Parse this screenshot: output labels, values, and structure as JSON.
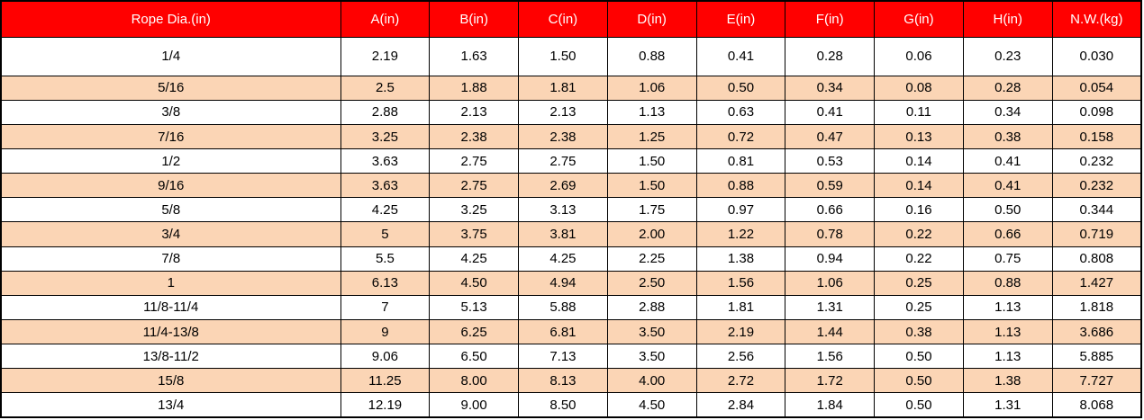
{
  "colors": {
    "header_bg": "#FF0000",
    "header_text": "#FFFFFF",
    "row_bg": "#FFFFFF",
    "row_alt_bg": "#FBD5B5",
    "border": "#000000"
  },
  "chart_data": {
    "type": "table",
    "columns": [
      "Rope Dia.(in)",
      "A(in)",
      "B(in)",
      "C(in)",
      "D(in)",
      "E(in)",
      "F(in)",
      "G(in)",
      "H(in)",
      "N.W.(kg)"
    ],
    "rows": [
      [
        "1/4",
        "2.19",
        "1.63",
        "1.50",
        "0.88",
        "0.41",
        "0.28",
        "0.06",
        "0.23",
        "0.030"
      ],
      [
        "5/16",
        "2.5",
        "1.88",
        "1.81",
        "1.06",
        "0.50",
        "0.34",
        "0.08",
        "0.28",
        "0.054"
      ],
      [
        "3/8",
        "2.88",
        "2.13",
        "2.13",
        "1.13",
        "0.63",
        "0.41",
        "0.11",
        "0.34",
        "0.098"
      ],
      [
        "7/16",
        "3.25",
        "2.38",
        "2.38",
        "1.25",
        "0.72",
        "0.47",
        "0.13",
        "0.38",
        "0.158"
      ],
      [
        "1/2",
        "3.63",
        "2.75",
        "2.75",
        "1.50",
        "0.81",
        "0.53",
        "0.14",
        "0.41",
        "0.232"
      ],
      [
        "9/16",
        "3.63",
        "2.75",
        "2.69",
        "1.50",
        "0.88",
        "0.59",
        "0.14",
        "0.41",
        "0.232"
      ],
      [
        "5/8",
        "4.25",
        "3.25",
        "3.13",
        "1.75",
        "0.97",
        "0.66",
        "0.16",
        "0.50",
        "0.344"
      ],
      [
        "3/4",
        "5",
        "3.75",
        "3.81",
        "2.00",
        "1.22",
        "0.78",
        "0.22",
        "0.66",
        "0.719"
      ],
      [
        "7/8",
        "5.5",
        "4.25",
        "4.25",
        "2.25",
        "1.38",
        "0.94",
        "0.22",
        "0.75",
        "0.808"
      ],
      [
        "1",
        "6.13",
        "4.50",
        "4.94",
        "2.50",
        "1.56",
        "1.06",
        "0.25",
        "0.88",
        "1.427"
      ],
      [
        "11/8-11/4",
        "7",
        "5.13",
        "5.88",
        "2.88",
        "1.81",
        "1.31",
        "0.25",
        "1.13",
        "1.818"
      ],
      [
        "11/4-13/8",
        "9",
        "6.25",
        "6.81",
        "3.50",
        "2.19",
        "1.44",
        "0.38",
        "1.13",
        "3.686"
      ],
      [
        "13/8-11/2",
        "9.06",
        "6.50",
        "7.13",
        "3.50",
        "2.56",
        "1.56",
        "0.50",
        "1.13",
        "5.885"
      ],
      [
        "15/8",
        "11.25",
        "8.00",
        "8.13",
        "4.00",
        "2.72",
        "1.72",
        "0.50",
        "1.38",
        "7.727"
      ],
      [
        "13/4",
        "12.19",
        "9.00",
        "8.50",
        "4.50",
        "2.84",
        "1.84",
        "0.50",
        "1.31",
        "8.068"
      ]
    ]
  }
}
